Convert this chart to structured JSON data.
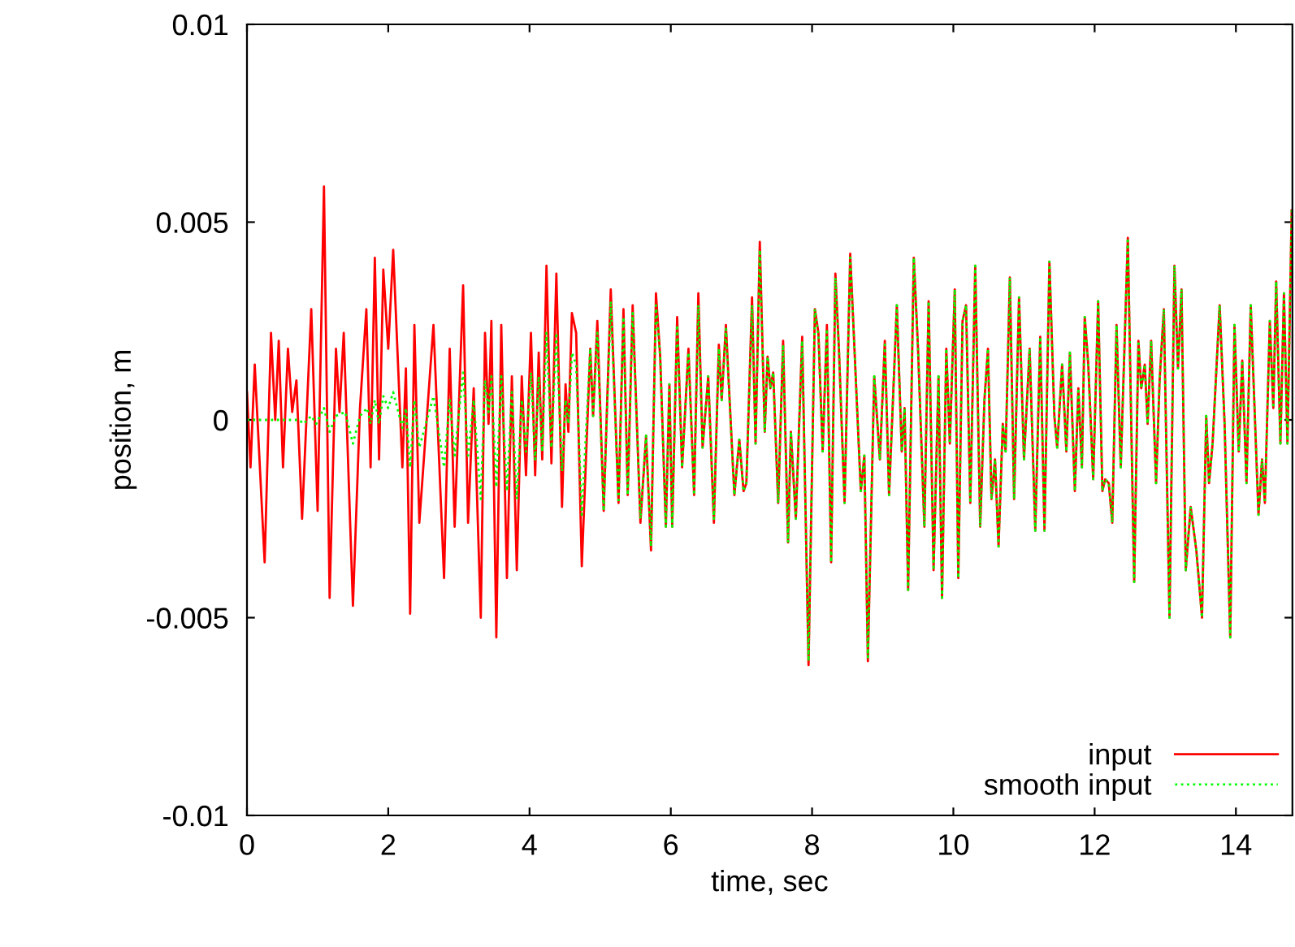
{
  "chart_data": {
    "type": "line",
    "xlabel": "time, sec",
    "ylabel": "position, m",
    "xlim": [
      0,
      14.8
    ],
    "ylim": [
      -0.01,
      0.01
    ],
    "xticks": [
      0,
      2,
      4,
      6,
      8,
      10,
      12,
      14
    ],
    "yticks": [
      {
        "value": -0.01,
        "label": "-0.01"
      },
      {
        "value": -0.005,
        "label": "-0.005"
      },
      0,
      {
        "value": 0.005,
        "label": "0.005"
      },
      {
        "value": 0.01,
        "label": "0.01"
      }
    ],
    "grid": false,
    "legend": "bottom right",
    "marker": "none",
    "series": [
      {
        "name": "input",
        "color": "#ff0000",
        "line_style": "solid",
        "x": [
          0.0,
          0.05,
          0.11,
          0.25,
          0.34,
          0.4,
          0.45,
          0.51,
          0.58,
          0.64,
          0.7,
          0.78,
          0.91,
          1.0,
          1.09,
          1.17,
          1.26,
          1.31,
          1.37,
          1.5,
          1.6,
          1.69,
          1.75,
          1.81,
          1.87,
          1.93,
          2.0,
          2.07,
          2.2,
          2.25,
          2.31,
          2.37,
          2.44,
          2.64,
          2.79,
          2.87,
          2.94,
          3.06,
          3.13,
          3.21,
          3.31,
          3.37,
          3.42,
          3.46,
          3.53,
          3.6,
          3.68,
          3.75,
          3.82,
          3.89,
          3.95,
          4.02,
          4.08,
          4.13,
          4.18,
          4.24,
          4.31,
          4.38,
          4.46,
          4.51,
          4.55,
          4.6,
          4.66,
          4.74,
          4.86,
          4.9,
          4.96,
          5.05,
          5.15,
          5.26,
          5.33,
          5.39,
          5.46,
          5.57,
          5.65,
          5.72,
          5.79,
          5.85,
          5.93,
          5.98,
          6.02,
          6.09,
          6.16,
          6.25,
          6.33,
          6.39,
          6.45,
          6.53,
          6.61,
          6.68,
          6.72,
          6.78,
          6.9,
          6.97,
          7.03,
          7.07,
          7.15,
          7.2,
          7.26,
          7.33,
          7.37,
          7.41,
          7.45,
          7.52,
          7.59,
          7.66,
          7.7,
          7.77,
          7.86,
          7.95,
          8.04,
          8.09,
          8.15,
          8.21,
          8.27,
          8.33,
          8.38,
          8.46,
          8.54,
          8.6,
          8.69,
          8.74,
          8.79,
          8.88,
          8.96,
          9.03,
          9.09,
          9.2,
          9.27,
          9.31,
          9.36,
          9.44,
          9.5,
          9.59,
          9.65,
          9.72,
          9.79,
          9.84,
          9.9,
          9.95,
          10.02,
          10.07,
          10.13,
          10.18,
          10.24,
          10.31,
          10.38,
          10.44,
          10.49,
          10.54,
          10.59,
          10.64,
          10.7,
          10.74,
          10.8,
          10.86,
          10.93,
          11.0,
          11.08,
          11.16,
          11.23,
          11.29,
          11.36,
          11.43,
          11.47,
          11.54,
          11.6,
          11.65,
          11.72,
          11.77,
          11.82,
          11.86,
          11.91,
          11.98,
          12.05,
          12.11,
          12.15,
          12.2,
          12.25,
          12.31,
          12.37,
          12.47,
          12.56,
          12.62,
          12.66,
          12.71,
          12.75,
          12.8,
          12.87,
          12.92,
          12.98,
          13.06,
          13.13,
          13.18,
          13.23,
          13.29,
          13.36,
          13.44,
          13.52,
          13.58,
          13.62,
          13.67,
          13.77,
          13.84,
          13.92,
          13.98,
          14.04,
          14.09,
          14.15,
          14.21,
          14.32,
          14.37,
          14.41,
          14.48,
          14.53,
          14.57,
          14.63,
          14.68,
          14.73,
          14.79
        ],
        "values": [
          0.0007,
          -0.0012,
          0.0014,
          -0.0036,
          0.0022,
          0.0,
          0.002,
          -0.0012,
          0.0018,
          0.0002,
          0.001,
          -0.0025,
          0.0028,
          -0.0023,
          0.0059,
          -0.0045,
          0.0018,
          0.0002,
          0.0022,
          -0.0047,
          0.0003,
          0.0028,
          -0.0012,
          0.0041,
          -0.001,
          0.0038,
          0.0018,
          0.0043,
          -0.0012,
          0.0013,
          -0.0049,
          0.0024,
          -0.0026,
          0.0024,
          -0.004,
          0.0018,
          -0.0027,
          0.0034,
          -0.0026,
          0.0008,
          -0.005,
          0.0022,
          -0.0001,
          0.0025,
          -0.0055,
          0.0024,
          -0.004,
          0.0011,
          -0.0038,
          0.0011,
          -0.0014,
          0.0022,
          -0.0014,
          0.0017,
          -0.001,
          0.0039,
          -0.0011,
          0.0037,
          -0.0022,
          0.0009,
          -0.0003,
          0.0027,
          0.0022,
          -0.0037,
          0.0018,
          0.0001,
          0.0025,
          -0.0023,
          0.0033,
          -0.0021,
          0.0028,
          -0.0019,
          0.0029,
          -0.0026,
          -0.0004,
          -0.0033,
          0.0032,
          0.0016,
          -0.0027,
          0.0009,
          -0.0027,
          0.0026,
          -0.0012,
          0.0018,
          -0.0019,
          0.0032,
          -0.0007,
          0.0011,
          -0.0026,
          0.0019,
          0.0005,
          0.0024,
          -0.0019,
          -0.0005,
          -0.0018,
          -0.0016,
          0.0031,
          -0.0006,
          0.0045,
          -0.0003,
          0.0016,
          0.0008,
          0.0012,
          -0.0021,
          0.002,
          -0.0031,
          -0.0003,
          -0.0025,
          0.0021,
          -0.0062,
          0.0028,
          0.0022,
          -0.0008,
          0.0024,
          -0.0036,
          0.0037,
          0.0018,
          -0.0021,
          0.0042,
          0.0018,
          -0.0018,
          -0.0009,
          -0.0061,
          0.0011,
          -0.001,
          0.002,
          -0.0019,
          0.0029,
          -0.0008,
          0.0003,
          -0.0043,
          0.0041,
          0.0018,
          -0.0027,
          0.003,
          -0.0038,
          0.0011,
          -0.0045,
          0.0018,
          -0.0006,
          0.0033,
          -0.004,
          0.0025,
          0.0029,
          -0.0021,
          0.0039,
          -0.0027,
          0.0005,
          0.0018,
          -0.002,
          -0.001,
          -0.0032,
          -0.0001,
          -0.0008,
          0.0036,
          -0.002,
          0.0031,
          -0.001,
          0.0018,
          -0.0028,
          0.0021,
          -0.0028,
          0.004,
          0.0001,
          -0.0007,
          0.0014,
          -0.0008,
          0.0017,
          -0.0018,
          0.0008,
          -0.0012,
          0.0026,
          0.0014,
          -0.0015,
          0.003,
          -0.0018,
          -0.0015,
          -0.0016,
          -0.0026,
          0.0024,
          -0.0012,
          0.0046,
          -0.0041,
          0.002,
          0.0008,
          0.0014,
          -0.0001,
          0.002,
          -0.0016,
          0.001,
          0.0028,
          -0.005,
          0.0039,
          0.0013,
          0.0033,
          -0.0038,
          -0.0022,
          -0.0033,
          -0.005,
          0.0001,
          -0.0016,
          -0.0006,
          0.0029,
          -0.0001,
          -0.0055,
          0.0024,
          -0.0008,
          0.0015,
          -0.0016,
          0.0029,
          -0.0024,
          -0.001,
          -0.0021,
          0.0025,
          0.0003,
          0.0035,
          -0.0006,
          0.0032,
          -0.0006,
          0.0053
        ]
      },
      {
        "name": "smooth input",
        "color": "#00ff00",
        "line_style": "dotted",
        "x": [
          0.0,
          0.74,
          0.8,
          0.91,
          0.98,
          1.09,
          1.17,
          1.26,
          1.39,
          1.5,
          1.6,
          1.7,
          1.75,
          1.81,
          1.87,
          1.93,
          2.0,
          2.07,
          2.2,
          2.25,
          2.31,
          2.37,
          2.44,
          2.64,
          2.79,
          2.87,
          2.94,
          3.06,
          3.13,
          3.21,
          3.31,
          3.37,
          3.42,
          3.46,
          3.53,
          3.6,
          3.68,
          3.75,
          3.82,
          3.89,
          3.95,
          4.02,
          4.08,
          4.13,
          4.18,
          4.24,
          4.31,
          4.38,
          4.46,
          4.51,
          4.55,
          4.6,
          4.66,
          4.74,
          4.86,
          4.9,
          4.96,
          5.05,
          5.15,
          5.26,
          5.33,
          5.39,
          5.46,
          5.57,
          5.65,
          5.72,
          5.79,
          5.85,
          5.93,
          5.98,
          6.02,
          6.09,
          6.16,
          6.25,
          6.33,
          6.39,
          6.45,
          6.53,
          6.61,
          6.68,
          6.72,
          6.78,
          6.9,
          6.97,
          7.03,
          7.07,
          7.15,
          7.2,
          7.26,
          7.33,
          7.37,
          7.41,
          7.45,
          7.52,
          7.59,
          7.66,
          7.7,
          7.77,
          7.86,
          7.95,
          8.04,
          8.09,
          8.15,
          8.21,
          8.27,
          8.33,
          8.38,
          8.46,
          8.54,
          8.6,
          8.69,
          8.74,
          8.79,
          8.88,
          8.96,
          9.03,
          9.09,
          9.2,
          9.27,
          9.31,
          9.36,
          9.44,
          9.5,
          9.59,
          9.65,
          9.72,
          9.79,
          9.84,
          9.9,
          9.95,
          10.02,
          10.07,
          10.13,
          10.18,
          10.24,
          10.31,
          10.38,
          10.44,
          10.49,
          10.54,
          10.59,
          10.64,
          10.7,
          10.74,
          10.8,
          10.86,
          10.93,
          11.0,
          11.08,
          11.16,
          11.23,
          11.29,
          11.36,
          11.43,
          11.47,
          11.54,
          11.6,
          11.65,
          11.72,
          11.77,
          11.82,
          11.86,
          11.91,
          11.98,
          12.05,
          12.11,
          12.15,
          12.2,
          12.25,
          12.31,
          12.37,
          12.47,
          12.56,
          12.62,
          12.66,
          12.71,
          12.75,
          12.8,
          12.87,
          12.92,
          12.98,
          13.06,
          13.13,
          13.18,
          13.23,
          13.29,
          13.36,
          13.44,
          13.52,
          13.58,
          13.62,
          13.67,
          13.77,
          13.84,
          13.92,
          13.98,
          14.04,
          14.09,
          14.15,
          14.21,
          14.32,
          14.37,
          14.41,
          14.48,
          14.53,
          14.57,
          14.63,
          14.68,
          14.73,
          14.79
        ],
        "values": [
          0.0,
          0.0,
          -0.0001,
          0.0001,
          -0.0001,
          0.0003,
          -0.0003,
          0.0001,
          0.0002,
          -0.0006,
          0.0001,
          0.0003,
          -0.0001,
          0.0005,
          -0.0001,
          0.0006,
          0.0003,
          0.0007,
          -0.0002,
          0.0003,
          -0.0012,
          0.0005,
          -0.0007,
          0.0006,
          -0.0012,
          0.0005,
          -0.0009,
          0.0012,
          -0.0009,
          0.0005,
          -0.002,
          0.001,
          0.0002,
          0.0011,
          -0.0017,
          0.0011,
          -0.0018,
          0.0007,
          -0.002,
          0.0005,
          -0.0008,
          0.0012,
          -0.001,
          0.0011,
          -0.0008,
          0.0022,
          -0.0007,
          0.0022,
          -0.0013,
          0.0005,
          -0.0001,
          0.0017,
          0.0014,
          -0.0024,
          0.0018,
          0.0001,
          0.0022,
          -0.0023,
          0.003,
          -0.0021,
          0.0026,
          -0.0019,
          0.0027,
          -0.0025,
          -0.0004,
          -0.0032,
          0.0029,
          0.0016,
          -0.0027,
          0.0009,
          -0.0027,
          0.0024,
          -0.0012,
          0.0017,
          -0.0019,
          0.0029,
          -0.0007,
          0.0011,
          -0.0025,
          0.0018,
          0.0005,
          0.0023,
          -0.0019,
          -0.0005,
          -0.0018,
          -0.0016,
          0.0029,
          -0.0006,
          0.0043,
          -0.0003,
          0.0016,
          0.0008,
          0.0012,
          -0.0021,
          0.0019,
          -0.0031,
          -0.0003,
          -0.0025,
          0.002,
          -0.0061,
          0.0028,
          0.0021,
          -0.0008,
          0.0023,
          -0.0036,
          0.0036,
          0.0018,
          -0.0021,
          0.0041,
          0.0018,
          -0.0018,
          -0.0009,
          -0.006,
          0.0011,
          -0.001,
          0.0019,
          -0.0019,
          0.0029,
          -0.0008,
          0.0003,
          -0.0043,
          0.0041,
          0.0018,
          -0.0027,
          0.003,
          -0.0038,
          0.0011,
          -0.0045,
          0.0018,
          -0.0006,
          0.0033,
          -0.004,
          0.0025,
          0.0029,
          -0.0021,
          0.0039,
          -0.0027,
          0.0005,
          0.0018,
          -0.002,
          -0.001,
          -0.0032,
          -0.0001,
          -0.0008,
          0.0036,
          -0.002,
          0.0031,
          -0.001,
          0.0018,
          -0.0028,
          0.0021,
          -0.0028,
          0.004,
          0.0001,
          -0.0007,
          0.0014,
          -0.0008,
          0.0017,
          -0.0018,
          0.0008,
          -0.0012,
          0.0026,
          0.0014,
          -0.0015,
          0.003,
          -0.0018,
          -0.0015,
          -0.0016,
          -0.0026,
          0.0024,
          -0.0012,
          0.0046,
          -0.0041,
          0.002,
          0.0008,
          0.0014,
          -0.0001,
          0.002,
          -0.0016,
          0.001,
          0.0028,
          -0.005,
          0.0039,
          0.0013,
          0.0033,
          -0.0038,
          -0.0022,
          -0.0033,
          -0.005,
          0.0001,
          -0.0016,
          -0.0006,
          0.0029,
          -0.0001,
          -0.0055,
          0.0024,
          -0.0008,
          0.0015,
          -0.0016,
          0.0029,
          -0.0024,
          -0.001,
          -0.0021,
          0.0025,
          0.0003,
          0.0035,
          -0.0006,
          0.0032,
          -0.0006,
          0.0053
        ]
      }
    ]
  }
}
